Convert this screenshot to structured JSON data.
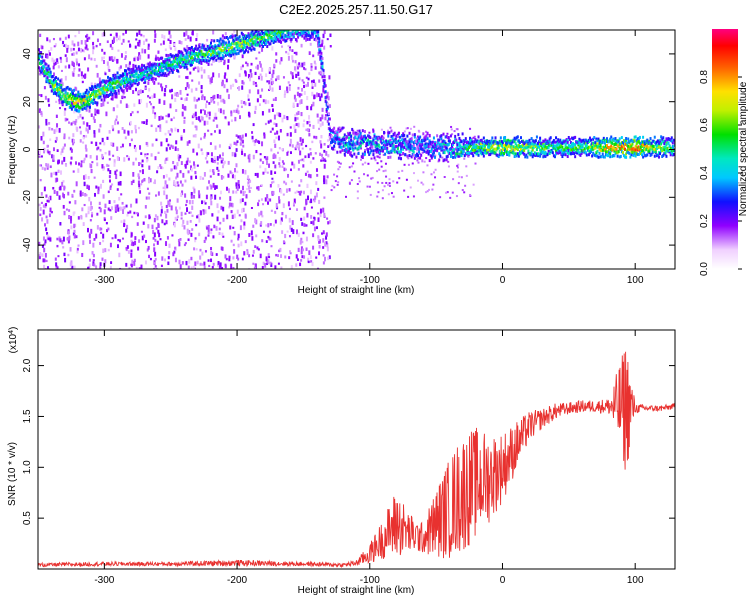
{
  "title": "C2E2.2025.257.11.50.G17",
  "chart_data": [
    {
      "type": "heatmap",
      "xlabel": "Height of straight line (km)",
      "ylabel": "Frequency (Hz)",
      "xlim": [
        -350,
        130
      ],
      "ylim": [
        -50,
        50
      ],
      "xticks": [
        -300,
        -200,
        -100,
        0,
        100
      ],
      "xtick_labels": [
        "-300",
        "-200",
        "-100",
        "0",
        "100"
      ],
      "yticks": [
        -40,
        -20,
        0,
        20,
        40
      ],
      "ytick_labels": [
        "-40",
        "-20",
        "0",
        "20",
        "40"
      ],
      "colorbar": {
        "label": "Normalized spectral amplitude",
        "range": [
          0,
          1
        ],
        "ticks": [
          0.0,
          0.2,
          0.4,
          0.6,
          0.8
        ],
        "tick_labels": [
          "0.0",
          "0.2",
          "0.4",
          "0.6",
          "0.8"
        ]
      },
      "main_trace": {
        "x": [
          -350,
          -340,
          -330,
          -320,
          -310,
          -300,
          -280,
          -260,
          -240,
          -220,
          -200,
          -180,
          -160,
          -140,
          -130,
          -120,
          -100,
          -80,
          -60,
          -40,
          -20,
          0,
          20,
          40,
          60,
          80,
          100,
          130
        ],
        "y": [
          38,
          28,
          22,
          20,
          22,
          26,
          30,
          34,
          38,
          41,
          44,
          47,
          50,
          50,
          5,
          3,
          2,
          2,
          1,
          1,
          1,
          1,
          1,
          1,
          1,
          1,
          1,
          1
        ],
        "amplitude": [
          0.5,
          0.6,
          0.7,
          0.75,
          0.7,
          0.6,
          0.5,
          0.5,
          0.55,
          0.6,
          0.65,
          0.6,
          0.5,
          0.4,
          0.35,
          0.45,
          0.45,
          0.45,
          0.4,
          0.45,
          0.6,
          0.7,
          0.65,
          0.55,
          0.6,
          0.8,
          0.85,
          0.5
        ]
      }
    },
    {
      "type": "line",
      "xlabel": "Height of straight line (km)",
      "ylabel": "SNR (10 * v/v)",
      "y_multiplier_label": "(x10",
      "y_multiplier_exp": "4",
      "y_multiplier_close": ")",
      "xlim": [
        -350,
        130
      ],
      "ylim": [
        0,
        2.35
      ],
      "xticks": [
        -300,
        -200,
        -100,
        0,
        100
      ],
      "xtick_labels": [
        "-300",
        "-200",
        "-100",
        "0",
        "100"
      ],
      "yticks": [
        0.5,
        1.0,
        1.5,
        2.0
      ],
      "ytick_labels": [
        "0.5",
        "1.0",
        "1.5",
        "2.0"
      ],
      "series": [
        {
          "color": "#e8312f",
          "x": [
            -350,
            -300,
            -250,
            -200,
            -150,
            -120,
            -110,
            -100,
            -90,
            -80,
            -70,
            -60,
            -50,
            -40,
            -30,
            -20,
            -10,
            0,
            10,
            20,
            30,
            40,
            50,
            60,
            70,
            80,
            90,
            93,
            100,
            110,
            120,
            130
          ],
          "y": [
            0.04,
            0.05,
            0.05,
            0.06,
            0.05,
            0.04,
            0.06,
            0.15,
            0.3,
            0.45,
            0.35,
            0.3,
            0.45,
            0.6,
            0.75,
            0.85,
            0.9,
            1.0,
            1.2,
            1.4,
            1.48,
            1.55,
            1.58,
            1.6,
            1.6,
            1.6,
            1.6,
            1.6,
            1.58,
            1.58,
            1.58,
            1.6
          ],
          "spread": [
            0.02,
            0.02,
            0.02,
            0.03,
            0.02,
            0.02,
            0.03,
            0.1,
            0.2,
            0.35,
            0.2,
            0.15,
            0.35,
            0.5,
            0.6,
            0.55,
            0.45,
            0.35,
            0.25,
            0.15,
            0.1,
            0.08,
            0.06,
            0.06,
            0.06,
            0.08,
            0.5,
            0.7,
            0.05,
            0.03,
            0.03,
            0.03
          ]
        }
      ]
    }
  ]
}
